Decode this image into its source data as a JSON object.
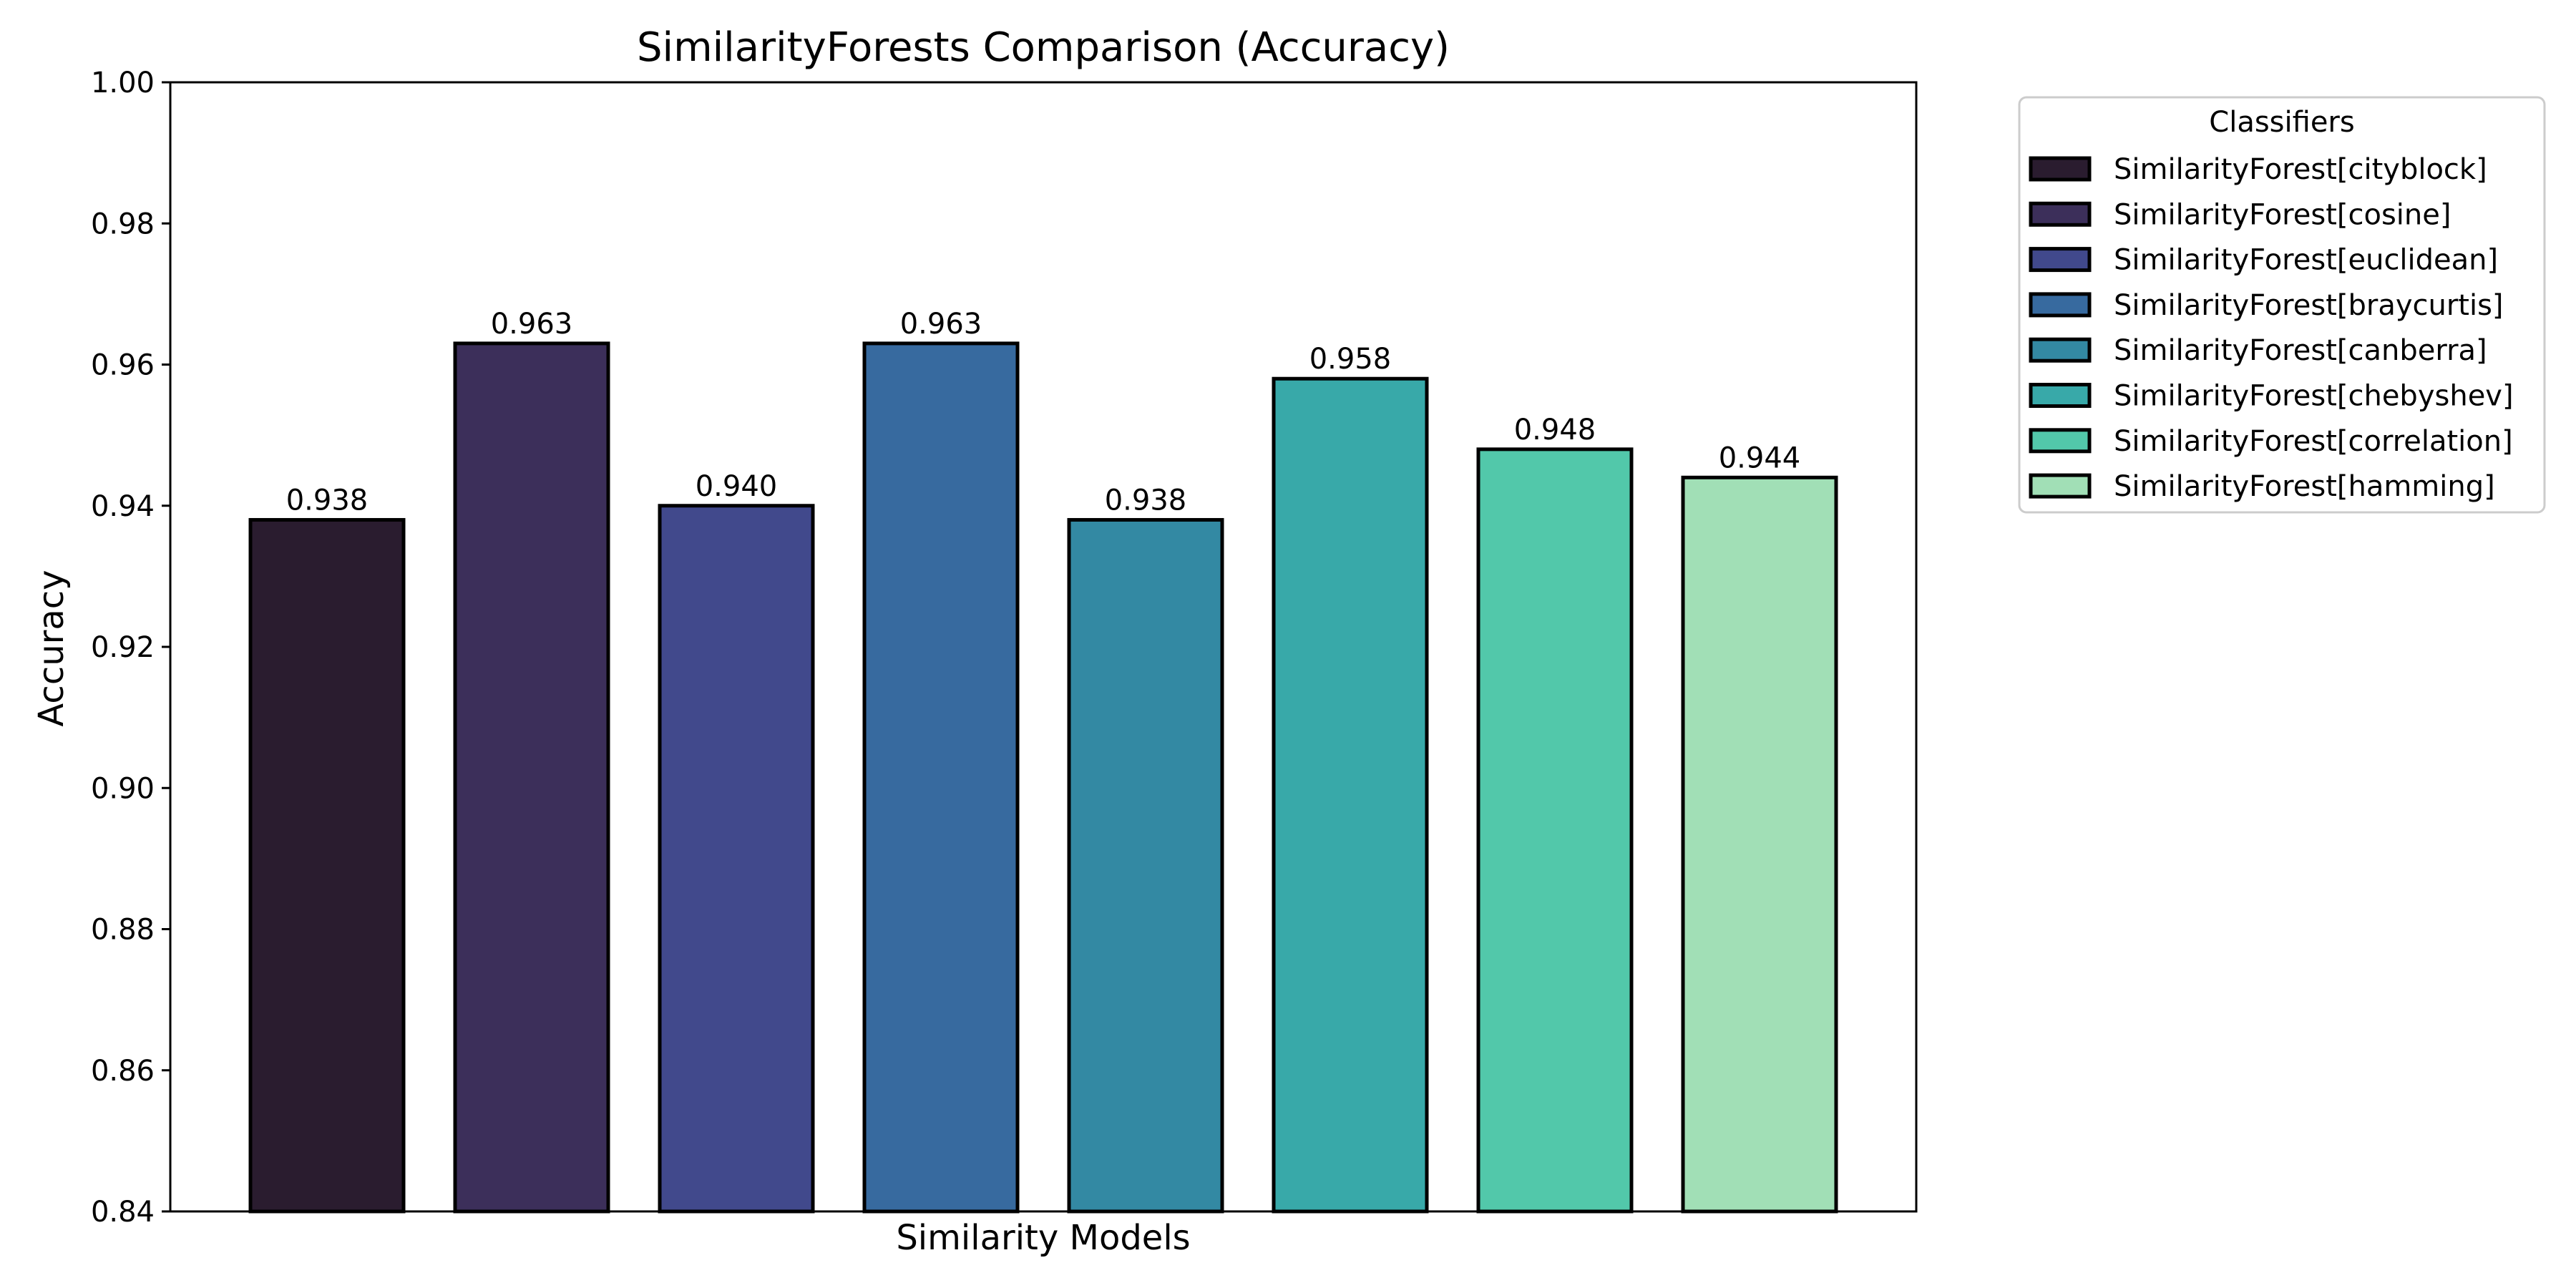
{
  "chart_data": {
    "type": "bar",
    "title": "SimilarityForests Comparison (Accuracy)",
    "xlabel": "Similarity Models",
    "ylabel": "Accuracy",
    "ylim": [
      0.84,
      1.0
    ],
    "yticks": [
      "0.84",
      "0.86",
      "0.88",
      "0.90",
      "0.92",
      "0.94",
      "0.96",
      "0.98",
      "1.00"
    ],
    "grid": false,
    "legend": {
      "title": "Classifiers",
      "placement": "outside top-right"
    },
    "categories": [
      "SimilarityForest[cityblock]",
      "SimilarityForest[cosine]",
      "SimilarityForest[euclidean]",
      "SimilarityForest[braycurtis]",
      "SimilarityForest[canberra]",
      "SimilarityForest[chebyshev]",
      "SimilarityForest[correlation]",
      "SimilarityForest[hamming]"
    ],
    "values": [
      0.938,
      0.963,
      0.94,
      0.963,
      0.938,
      0.958,
      0.948,
      0.944
    ],
    "value_labels": [
      "0.938",
      "0.963",
      "0.940",
      "0.963",
      "0.938",
      "0.958",
      "0.948",
      "0.944"
    ],
    "colors": [
      "#2a1c2f",
      "#3c2f5a",
      "#41498c",
      "#376a9f",
      "#3389a3",
      "#38a9a9",
      "#52c8aa",
      "#a1dfb6"
    ],
    "edge_color": "#000000"
  }
}
